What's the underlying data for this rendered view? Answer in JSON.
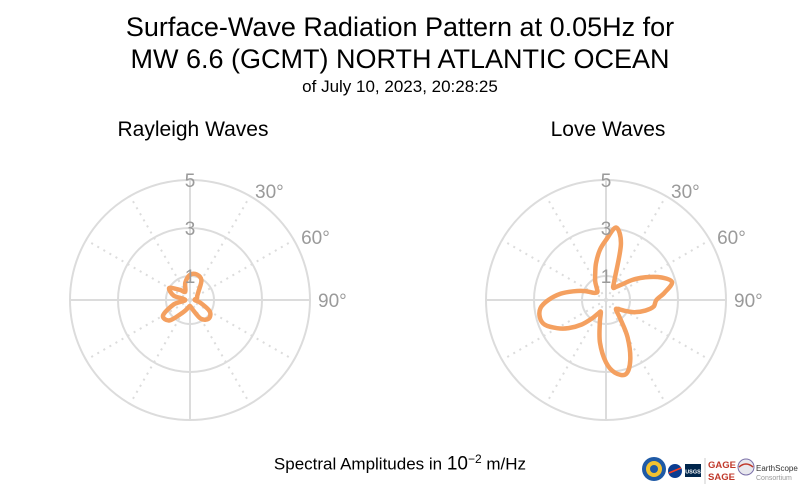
{
  "title": {
    "line1": "Surface-Wave Radiation Pattern at 0.05Hz for",
    "line2": "MW 6.6 (GCMT) NORTH ATLANTIC OCEAN",
    "line3": "of July 10, 2023, 20:28:25"
  },
  "footer": {
    "prefix": "Spectral Amplitudes in ",
    "base": "10",
    "exponent": "−2",
    "unit": " m/Hz"
  },
  "logos": {
    "gage": "GAGE",
    "sage": "SAGE",
    "usgs": "USGS",
    "earthscope": "EarthScope",
    "consortium": "Consortium"
  },
  "colors": {
    "pattern": "#f4a060",
    "grid": "#dcdcdc",
    "tick_label": "#9a9a9a"
  },
  "chart_data": [
    {
      "type": "polar-line",
      "title": "Rayleigh Waves",
      "radial_ticks": [
        "1",
        "3",
        "5"
      ],
      "radial_tick_values": [
        1,
        3,
        5
      ],
      "angle_ticks": [
        "30°",
        "60°",
        "90°"
      ],
      "angle_tick_values": [
        30,
        60,
        90
      ],
      "rmax": 5,
      "series": [
        {
          "theta": [
            0,
            15,
            30,
            45,
            60,
            75,
            90,
            105,
            120,
            135,
            150,
            165,
            180,
            195,
            210,
            225,
            240,
            255,
            270,
            285,
            300,
            315,
            330,
            345
          ],
          "r": [
            1.05,
            1.1,
            0.95,
            0.5,
            0.35,
            0.3,
            0.2,
            0.45,
            0.95,
            1.1,
            0.9,
            0.4,
            0.25,
            0.35,
            0.6,
            1.2,
            1.3,
            0.7,
            0.2,
            0.7,
            1.0,
            0.6,
            0.4,
            0.75
          ]
        }
      ]
    },
    {
      "type": "polar-line",
      "title": "Love Waves",
      "radial_ticks": [
        "1",
        "3",
        "5"
      ],
      "radial_tick_values": [
        1,
        3,
        5
      ],
      "angle_ticks": [
        "30°",
        "60°",
        "90°"
      ],
      "angle_tick_values": [
        30,
        60,
        90
      ],
      "rmax": 5,
      "series": [
        {
          "theta": [
            0,
            8,
            15,
            23,
            30,
            38,
            45,
            53,
            60,
            68,
            75,
            83,
            90,
            98,
            105,
            113,
            120,
            128,
            135,
            143,
            150,
            158,
            165,
            173,
            180,
            188,
            195,
            203,
            210,
            218,
            225,
            233,
            240,
            248,
            255,
            263,
            270,
            278,
            285,
            293,
            300,
            308,
            315,
            323,
            330,
            338,
            345,
            353
          ],
          "r": [
            2.5,
            3.05,
            2.4,
            0.9,
            0.6,
            0.7,
            0.9,
            1.4,
            1.9,
            2.5,
            2.85,
            2.45,
            2.1,
            2.0,
            1.7,
            1.3,
            0.9,
            0.6,
            0.6,
            1.0,
            1.8,
            2.7,
            3.2,
            3.05,
            2.6,
            1.8,
            1.0,
            0.55,
            0.65,
            1.0,
            1.45,
            1.95,
            2.35,
            2.75,
            2.85,
            2.75,
            2.4,
            1.9,
            1.4,
            0.95,
            0.6,
            0.5,
            0.5,
            0.65,
            0.9,
            1.2,
            1.6,
            2.1
          ]
        }
      ]
    }
  ]
}
